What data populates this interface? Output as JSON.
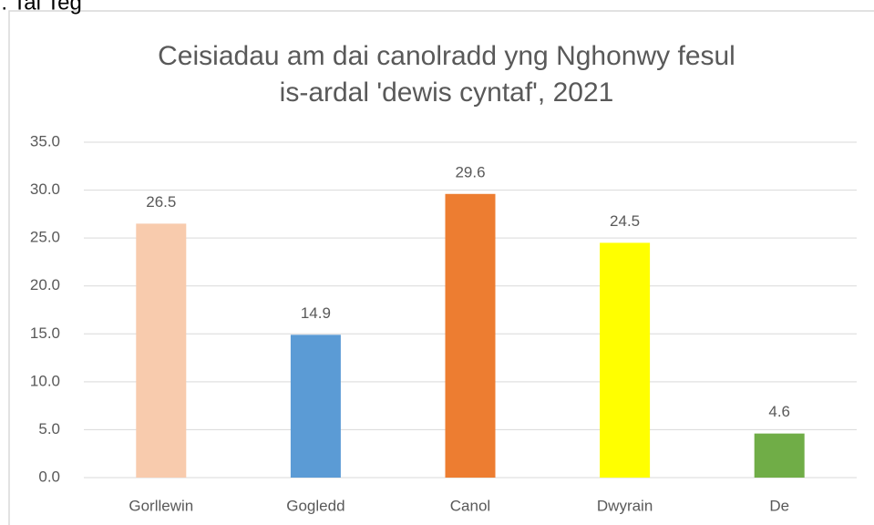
{
  "heading": "i. Tai Teg",
  "chart_data": {
    "type": "bar",
    "title": [
      "Ceisiadau am dai canolradd yng Nghonwy fesul",
      "is-ardal 'dewis cyntaf', 2021"
    ],
    "categories": [
      "Gorllewin",
      "Gogledd",
      "Canol",
      "Dwyrain",
      "De"
    ],
    "values": [
      26.5,
      14.9,
      29.6,
      24.5,
      4.6
    ],
    "colors": [
      "#f8cbad",
      "#5b9bd5",
      "#ed7d31",
      "#ffff00",
      "#70ad47"
    ],
    "ylim": [
      0,
      35
    ],
    "yticks": [
      {
        "value": 0,
        "label": "0.0"
      },
      {
        "value": 5,
        "label": "5.0"
      },
      {
        "value": 10,
        "label": "10.0"
      },
      {
        "value": 15,
        "label": "15.0"
      },
      {
        "value": 20,
        "label": "20.0"
      },
      {
        "value": 25,
        "label": "25.0"
      },
      {
        "value": 30,
        "label": "30.0"
      },
      {
        "value": 35,
        "label": "35.0"
      }
    ],
    "grid": true
  }
}
